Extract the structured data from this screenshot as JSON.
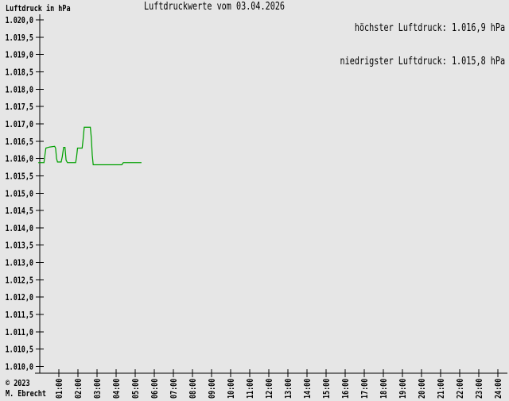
{
  "app": {
    "background_color": "#e6e6e6"
  },
  "header": {
    "axis_unit_label": "Luftdruck in hPa",
    "title": "Luftdruckwerte vom 03.04.2026",
    "max_label": "höchster Luftdruck: 1.016,9 hPa",
    "min_label": "niedrigster Luftdruck: 1.015,8 hPa"
  },
  "footer": {
    "copyright": "© 2023",
    "author": "M. Ebrecht"
  },
  "chart_data": {
    "type": "line",
    "title": "Luftdruckwerte vom 03.04.2026",
    "date": "03.04.2026",
    "ylabel": "Luftdruck in hPa",
    "xlabel": "",
    "unit": "hPa",
    "grid": false,
    "legend_position": "none",
    "line_color": "#00a000",
    "axis_color": "#000000",
    "ylim": [
      1010.0,
      1020.0
    ],
    "y_tick_step": 0.5,
    "xlim_hours": [
      0,
      24
    ],
    "x_tick_step_hours": 1,
    "y_tick_values": [
      1020.0,
      1019.5,
      1019.0,
      1018.5,
      1018.0,
      1017.5,
      1017.0,
      1016.5,
      1016.0,
      1015.5,
      1015.0,
      1014.5,
      1014.0,
      1013.5,
      1013.0,
      1012.5,
      1012.0,
      1011.5,
      1011.0,
      1010.5,
      1010.0
    ],
    "y_tick_labels": [
      "1.020,0",
      "1.019,5",
      "1.019,0",
      "1.018,5",
      "1.018,0",
      "1.017,5",
      "1.017,0",
      "1.016,5",
      "1.016,0",
      "1.015,5",
      "1.015,0",
      "1.014,5",
      "1.014,0",
      "1.013,5",
      "1.013,0",
      "1.012,5",
      "1.012,0",
      "1.011,5",
      "1.011,0",
      "1.010,5",
      "1.010,0"
    ],
    "x_tick_hours": [
      1,
      2,
      3,
      4,
      5,
      6,
      7,
      8,
      9,
      10,
      11,
      12,
      13,
      14,
      15,
      16,
      17,
      18,
      19,
      20,
      21,
      22,
      23,
      24
    ],
    "x_tick_labels": [
      "01:00",
      "02:00",
      "03:00",
      "04:00",
      "05:00",
      "06:00",
      "07:00",
      "08:00",
      "09:00",
      "10:00",
      "11:00",
      "12:00",
      "13:00",
      "14:00",
      "15:00",
      "16:00",
      "17:00",
      "18:00",
      "19:00",
      "20:00",
      "21:00",
      "22:00",
      "23:00",
      "24:00"
    ],
    "highest_hpa": 1016.9,
    "lowest_hpa": 1015.8,
    "series": [
      {
        "name": "Luftdruck",
        "unit": "hPa",
        "points_hour_hpa": [
          [
            -0.08,
            1015.88
          ],
          [
            0.22,
            1015.88
          ],
          [
            0.27,
            1016.1
          ],
          [
            0.32,
            1016.3
          ],
          [
            0.5,
            1016.33
          ],
          [
            0.78,
            1016.35
          ],
          [
            0.83,
            1016.3
          ],
          [
            0.88,
            1016.0
          ],
          [
            0.93,
            1015.9
          ],
          [
            1.12,
            1015.9
          ],
          [
            1.18,
            1016.05
          ],
          [
            1.25,
            1016.32
          ],
          [
            1.32,
            1016.32
          ],
          [
            1.38,
            1015.95
          ],
          [
            1.45,
            1015.88
          ],
          [
            1.88,
            1015.88
          ],
          [
            1.93,
            1016.05
          ],
          [
            1.98,
            1016.3
          ],
          [
            2.22,
            1016.3
          ],
          [
            2.27,
            1016.55
          ],
          [
            2.33,
            1016.9
          ],
          [
            2.65,
            1016.9
          ],
          [
            2.7,
            1016.6
          ],
          [
            2.75,
            1016.1
          ],
          [
            2.8,
            1015.82
          ],
          [
            4.3,
            1015.82
          ],
          [
            4.38,
            1015.88
          ],
          [
            5.33,
            1015.88
          ]
        ]
      }
    ]
  }
}
